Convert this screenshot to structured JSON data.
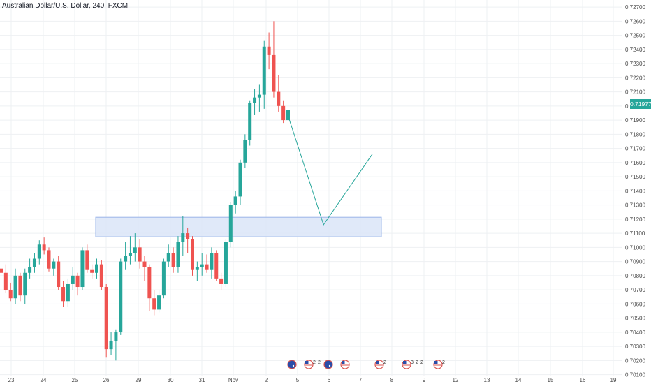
{
  "header": {
    "title": "Australian Dollar/U.S. Dollar, 240, FXCM"
  },
  "last_price": "0.71977",
  "colors": {
    "up": "#26a69a",
    "down": "#ef5350",
    "grid": "#eef0f3",
    "zone_fill": "#dbe5f8",
    "zone_border": "#9ab4e8",
    "projection": "#26a69a",
    "axis_text": "#4a4a4a"
  },
  "chart_data": {
    "type": "candlestick",
    "title": "Australian Dollar/U.S. Dollar, 240, FXCM",
    "symbol": "AUDUSD",
    "timeframe": "240",
    "source": "FXCM",
    "ylim": [
      0.7014,
      0.7273
    ],
    "y_ticks": [
      "0.72700",
      "0.72600",
      "0.72500",
      "0.72400",
      "0.72300",
      "0.72200",
      "0.72100",
      "0.72000",
      "0.71900",
      "0.71800",
      "0.71700",
      "0.71600",
      "0.71500",
      "0.71400",
      "0.71300",
      "0.71200",
      "0.71100",
      "0.71000",
      "0.70900",
      "0.70800",
      "0.70700",
      "0.70600",
      "0.70500",
      "0.70400",
      "0.70300",
      "0.70200",
      "0.70100"
    ],
    "x_ticks": [
      "23",
      "24",
      "25",
      "26",
      "29",
      "30",
      "31",
      "Nov",
      "2",
      "5",
      "6",
      "7",
      "8",
      "9",
      "12",
      "13",
      "14",
      "15",
      "16",
      "19"
    ],
    "candles": [
      {
        "o": 0.7085,
        "h": 0.7088,
        "l": 0.7065,
        "c": 0.7082
      },
      {
        "o": 0.7082,
        "h": 0.7088,
        "l": 0.7068,
        "c": 0.707
      },
      {
        "o": 0.707,
        "h": 0.7075,
        "l": 0.7062,
        "c": 0.7064
      },
      {
        "o": 0.7064,
        "h": 0.7085,
        "l": 0.706,
        "c": 0.708
      },
      {
        "o": 0.708,
        "h": 0.7082,
        "l": 0.7062,
        "c": 0.7066
      },
      {
        "o": 0.7066,
        "h": 0.7085,
        "l": 0.706,
        "c": 0.7082
      },
      {
        "o": 0.7082,
        "h": 0.7092,
        "l": 0.7078,
        "c": 0.7086
      },
      {
        "o": 0.7086,
        "h": 0.7096,
        "l": 0.7082,
        "c": 0.7092
      },
      {
        "o": 0.7092,
        "h": 0.7105,
        "l": 0.7088,
        "c": 0.7102
      },
      {
        "o": 0.7102,
        "h": 0.7107,
        "l": 0.7095,
        "c": 0.7098
      },
      {
        "o": 0.7098,
        "h": 0.71,
        "l": 0.7083,
        "c": 0.7085
      },
      {
        "o": 0.7085,
        "h": 0.7092,
        "l": 0.708,
        "c": 0.709
      },
      {
        "o": 0.709,
        "h": 0.7094,
        "l": 0.707,
        "c": 0.7072
      },
      {
        "o": 0.7072,
        "h": 0.7076,
        "l": 0.7058,
        "c": 0.7062
      },
      {
        "o": 0.7062,
        "h": 0.7078,
        "l": 0.7058,
        "c": 0.7074
      },
      {
        "o": 0.7074,
        "h": 0.7086,
        "l": 0.707,
        "c": 0.708
      },
      {
        "o": 0.708,
        "h": 0.7082,
        "l": 0.7066,
        "c": 0.7072
      },
      {
        "o": 0.7072,
        "h": 0.71,
        "l": 0.707,
        "c": 0.7098
      },
      {
        "o": 0.7098,
        "h": 0.7102,
        "l": 0.7082,
        "c": 0.7084
      },
      {
        "o": 0.7084,
        "h": 0.7088,
        "l": 0.7078,
        "c": 0.7082
      },
      {
        "o": 0.7082,
        "h": 0.7092,
        "l": 0.7078,
        "c": 0.7088
      },
      {
        "o": 0.7088,
        "h": 0.7091,
        "l": 0.707,
        "c": 0.7072
      },
      {
        "o": 0.7072,
        "h": 0.7074,
        "l": 0.7022,
        "c": 0.7028
      },
      {
        "o": 0.7028,
        "h": 0.704,
        "l": 0.7024,
        "c": 0.7034
      },
      {
        "o": 0.7034,
        "h": 0.7042,
        "l": 0.702,
        "c": 0.704
      },
      {
        "o": 0.704,
        "h": 0.7092,
        "l": 0.7038,
        "c": 0.709
      },
      {
        "o": 0.709,
        "h": 0.7104,
        "l": 0.7084,
        "c": 0.7094
      },
      {
        "o": 0.7094,
        "h": 0.7108,
        "l": 0.7088,
        "c": 0.7096
      },
      {
        "o": 0.7096,
        "h": 0.711,
        "l": 0.709,
        "c": 0.71
      },
      {
        "o": 0.71,
        "h": 0.7106,
        "l": 0.7085,
        "c": 0.709
      },
      {
        "o": 0.709,
        "h": 0.7094,
        "l": 0.7076,
        "c": 0.7086
      },
      {
        "o": 0.7086,
        "h": 0.7088,
        "l": 0.7055,
        "c": 0.7064
      },
      {
        "o": 0.7064,
        "h": 0.707,
        "l": 0.7052,
        "c": 0.7056
      },
      {
        "o": 0.7056,
        "h": 0.707,
        "l": 0.7054,
        "c": 0.7066
      },
      {
        "o": 0.7066,
        "h": 0.7092,
        "l": 0.7064,
        "c": 0.709
      },
      {
        "o": 0.709,
        "h": 0.7102,
        "l": 0.7086,
        "c": 0.7096
      },
      {
        "o": 0.7096,
        "h": 0.71,
        "l": 0.7082,
        "c": 0.7086
      },
      {
        "o": 0.7086,
        "h": 0.7108,
        "l": 0.7082,
        "c": 0.7104
      },
      {
        "o": 0.7104,
        "h": 0.7122,
        "l": 0.7094,
        "c": 0.711
      },
      {
        "o": 0.711,
        "h": 0.7114,
        "l": 0.7096,
        "c": 0.7106
      },
      {
        "o": 0.7106,
        "h": 0.7108,
        "l": 0.708,
        "c": 0.7084
      },
      {
        "o": 0.7084,
        "h": 0.709,
        "l": 0.7076,
        "c": 0.7086
      },
      {
        "o": 0.7086,
        "h": 0.7096,
        "l": 0.708,
        "c": 0.7088
      },
      {
        "o": 0.7088,
        "h": 0.7095,
        "l": 0.7082,
        "c": 0.7084
      },
      {
        "o": 0.7084,
        "h": 0.71,
        "l": 0.7078,
        "c": 0.7096
      },
      {
        "o": 0.7096,
        "h": 0.7098,
        "l": 0.7076,
        "c": 0.7078
      },
      {
        "o": 0.7078,
        "h": 0.7082,
        "l": 0.707,
        "c": 0.7074
      },
      {
        "o": 0.7074,
        "h": 0.7106,
        "l": 0.7072,
        "c": 0.7104
      },
      {
        "o": 0.7104,
        "h": 0.7132,
        "l": 0.71,
        "c": 0.713
      },
      {
        "o": 0.713,
        "h": 0.714,
        "l": 0.7124,
        "c": 0.7136
      },
      {
        "o": 0.7136,
        "h": 0.7162,
        "l": 0.713,
        "c": 0.716
      },
      {
        "o": 0.716,
        "h": 0.718,
        "l": 0.7156,
        "c": 0.7176
      },
      {
        "o": 0.7176,
        "h": 0.7204,
        "l": 0.7172,
        "c": 0.7202
      },
      {
        "o": 0.7202,
        "h": 0.7212,
        "l": 0.7194,
        "c": 0.7206
      },
      {
        "o": 0.7206,
        "h": 0.7215,
        "l": 0.7196,
        "c": 0.7208
      },
      {
        "o": 0.7208,
        "h": 0.7246,
        "l": 0.7198,
        "c": 0.7242
      },
      {
        "o": 0.7242,
        "h": 0.7252,
        "l": 0.7226,
        "c": 0.7236
      },
      {
        "o": 0.7236,
        "h": 0.726,
        "l": 0.7206,
        "c": 0.721
      },
      {
        "o": 0.721,
        "h": 0.7222,
        "l": 0.7196,
        "c": 0.72
      },
      {
        "o": 0.72,
        "h": 0.7204,
        "l": 0.7188,
        "c": 0.719
      },
      {
        "o": 0.719,
        "h": 0.72,
        "l": 0.7184,
        "c": 0.7197
      }
    ],
    "support_zone": {
      "y_top": 0.71213,
      "y_bottom": 0.71075
    },
    "projection_path": [
      {
        "bar": 60,
        "y": 0.7193
      },
      {
        "bar": 67.4,
        "y": 0.7116
      },
      {
        "bar": 77.6,
        "y": 0.7166
      }
    ],
    "event_markers": [
      "AUD",
      "USD 2 2",
      "AUD",
      "USD",
      "USD 2",
      "USD 3 2 2",
      "USD 2"
    ]
  }
}
